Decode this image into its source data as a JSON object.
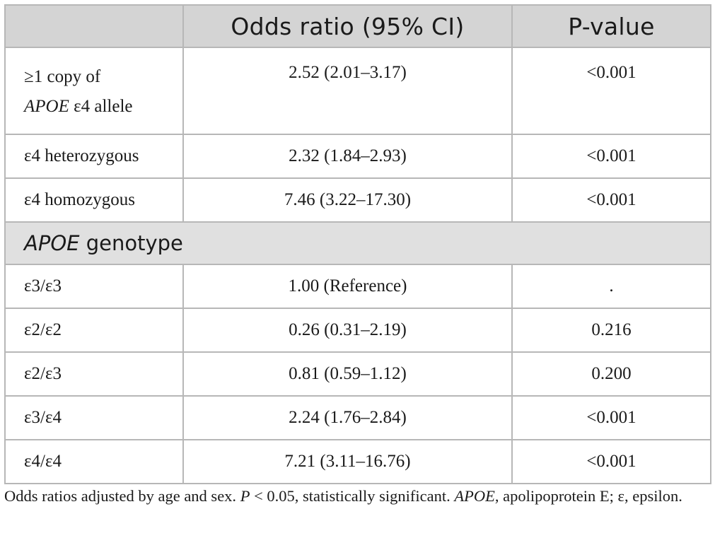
{
  "table": {
    "headers": [
      "",
      "Odds ratio (95% CI)",
      "P-value"
    ],
    "rows_top": [
      {
        "label_line1": "≥1 copy of",
        "label_gene": "APOE",
        "label_rest": " ε4 allele",
        "or": "2.52 (2.01–3.17)",
        "p": "<0.001"
      },
      {
        "label": "ε4 heterozygous",
        "or": "2.32 (1.84–2.93)",
        "p": "<0.001"
      },
      {
        "label": "ε4 homozygous",
        "or": "7.46 (3.22–17.30)",
        "p": "<0.001"
      }
    ],
    "section": {
      "gene": "APOE",
      "text": " genotype"
    },
    "rows_genotype": [
      {
        "label": "ε3/ε3",
        "or": "1.00 (Reference)",
        "p": "."
      },
      {
        "label": "ε2/ε2",
        "or": "0.26 (0.31–2.19)",
        "p": "0.216"
      },
      {
        "label": "ε2/ε3",
        "or": "0.81 (0.59–1.12)",
        "p": "0.200"
      },
      {
        "label": "ε3/ε4",
        "or": "2.24 (1.76–2.84)",
        "p": "<0.001"
      },
      {
        "label": "ε4/ε4",
        "or": "7.21 (3.11–16.76)",
        "p": "<0.001"
      }
    ]
  },
  "footnote": {
    "part1": "Odds ratios adjusted by age and sex. ",
    "p_symbol": "P",
    "part2": " < 0.05, statistically significant. ",
    "gene": "APOE",
    "part3": ", apolipoprotein E; ε, epsilon."
  }
}
